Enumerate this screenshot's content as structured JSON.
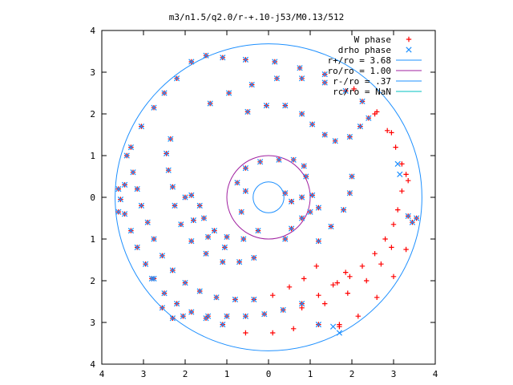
{
  "chart_data": {
    "type": "scatter",
    "title": "m3/n1.5/q2.0/r-+.10-j53/M0.13/512",
    "xlabel": "",
    "ylabel": "",
    "xlim": [
      -4,
      4
    ],
    "ylim": [
      -4,
      4
    ],
    "xtick_values": [
      -4,
      -3,
      -2,
      -1,
      0,
      1,
      2,
      3,
      4
    ],
    "xtick_labels": [
      "4",
      "3",
      "2",
      "1",
      "0",
      "1",
      "2",
      "3",
      "4"
    ],
    "ytick_values": [
      4,
      3,
      2,
      1,
      0,
      -1,
      -2,
      -3,
      -4
    ],
    "ytick_labels": [
      "4",
      "3",
      "2",
      "1",
      "0",
      "1",
      "2",
      "3",
      "4"
    ],
    "grid": false,
    "legend_position": "top-right",
    "legend": [
      {
        "label": "W phase",
        "kind": "marker",
        "marker": "+",
        "color": "#ff0000"
      },
      {
        "label": "drho phase",
        "kind": "marker",
        "marker": "x",
        "color": "#1e90ff"
      },
      {
        "label": "r+/ro = 3.68",
        "kind": "line",
        "color": "#1e90ff"
      },
      {
        "label": "ro/ro = 1.00",
        "kind": "line",
        "color": "#a020a0"
      },
      {
        "label": "r-/ro = .37",
        "kind": "line",
        "color": "#1e90ff"
      },
      {
        "label": "rc/ro = NaN",
        "kind": "line",
        "color": "#00c0c0"
      }
    ],
    "circles": [
      {
        "name": "r+",
        "radius": 3.68,
        "color": "#1e90ff"
      },
      {
        "name": "ro",
        "radius": 1.0,
        "color": "#a020a0"
      },
      {
        "name": "r-",
        "radius": 0.37,
        "color": "#1e90ff"
      }
    ],
    "series": [
      {
        "name": "W phase",
        "color": "#ff0000",
        "marker": "+",
        "points": [
          [
            -3.6,
            0.2
          ],
          [
            -3.55,
            -0.05
          ],
          [
            -3.45,
            -0.4
          ],
          [
            -3.3,
            -0.8
          ],
          [
            -3.15,
            -1.2
          ],
          [
            -2.95,
            -1.6
          ],
          [
            -2.75,
            -1.95
          ],
          [
            -2.5,
            -2.3
          ],
          [
            -2.2,
            -2.55
          ],
          [
            -1.85,
            -2.75
          ],
          [
            -1.45,
            -2.85
          ],
          [
            -1.0,
            -2.85
          ],
          [
            -0.55,
            -2.85
          ],
          [
            -0.1,
            -2.8
          ],
          [
            0.35,
            -2.7
          ],
          [
            0.8,
            -2.55
          ],
          [
            1.2,
            -2.35
          ],
          [
            1.55,
            -2.1
          ],
          [
            1.85,
            -1.8
          ],
          [
            -3.4,
            1.0
          ],
          [
            -3.25,
            0.6
          ],
          [
            -3.15,
            0.2
          ],
          [
            -3.05,
            -0.2
          ],
          [
            -2.9,
            -0.6
          ],
          [
            -2.75,
            -1.0
          ],
          [
            -2.55,
            -1.4
          ],
          [
            -2.3,
            -1.75
          ],
          [
            -2.0,
            -2.05
          ],
          [
            -1.65,
            -2.25
          ],
          [
            -1.25,
            -2.4
          ],
          [
            -0.8,
            -2.45
          ],
          [
            -0.35,
            -2.45
          ],
          [
            0.1,
            -2.35
          ],
          [
            0.5,
            -2.15
          ],
          [
            0.85,
            -1.95
          ],
          [
            1.15,
            -1.65
          ],
          [
            -2.35,
            1.4
          ],
          [
            -2.45,
            1.05
          ],
          [
            -2.4,
            0.65
          ],
          [
            -2.3,
            0.25
          ],
          [
            -2.25,
            -0.2
          ],
          [
            -2.1,
            -0.65
          ],
          [
            -1.85,
            -1.05
          ],
          [
            -1.5,
            -1.35
          ],
          [
            -1.1,
            -1.55
          ],
          [
            -0.7,
            -1.55
          ],
          [
            -0.35,
            -1.45
          ],
          [
            -1.85,
            0.05
          ],
          [
            -1.65,
            -0.2
          ],
          [
            -1.55,
            -0.5
          ],
          [
            -1.3,
            -0.8
          ],
          [
            -1.0,
            -0.95
          ],
          [
            -0.6,
            -1.0
          ],
          [
            -0.25,
            -0.8
          ],
          [
            -2.0,
            0.0
          ],
          [
            -1.8,
            -0.55
          ],
          [
            -1.45,
            -0.95
          ],
          [
            -1.05,
            -1.2
          ],
          [
            -1.4,
            2.25
          ],
          [
            -0.95,
            2.5
          ],
          [
            -0.4,
            2.7
          ],
          [
            0.2,
            2.85
          ],
          [
            0.8,
            2.85
          ],
          [
            1.35,
            2.75
          ],
          [
            1.85,
            2.55
          ],
          [
            2.25,
            2.3
          ],
          [
            2.55,
            2.0
          ],
          [
            2.85,
            1.6
          ],
          [
            3.05,
            1.2
          ],
          [
            3.2,
            0.8
          ],
          [
            3.35,
            0.4
          ],
          [
            -0.5,
            2.05
          ],
          [
            -0.05,
            2.2
          ],
          [
            0.4,
            2.2
          ],
          [
            0.8,
            2.0
          ],
          [
            1.05,
            1.75
          ],
          [
            1.35,
            1.5
          ],
          [
            1.6,
            1.35
          ],
          [
            1.95,
            1.45
          ],
          [
            2.2,
            1.7
          ],
          [
            2.4,
            1.9
          ],
          [
            -0.75,
            0.35
          ],
          [
            -0.55,
            0.7
          ],
          [
            -0.2,
            0.85
          ],
          [
            0.25,
            0.9
          ],
          [
            0.6,
            0.9
          ],
          [
            0.85,
            0.75
          ],
          [
            0.9,
            0.5
          ],
          [
            0.4,
            -1.0
          ],
          [
            0.55,
            -0.75
          ],
          [
            0.8,
            -0.5
          ],
          [
            1.0,
            -0.35
          ],
          [
            1.2,
            -0.25
          ],
          [
            0.4,
            0.1
          ],
          [
            0.55,
            -0.1
          ],
          [
            0.8,
            0.0
          ],
          [
            1.05,
            0.05
          ],
          [
            -0.65,
            -0.35
          ],
          [
            -0.55,
            0.15
          ],
          [
            0.55,
            -0.1
          ],
          [
            2.0,
            0.5
          ],
          [
            1.95,
            0.1
          ],
          [
            1.8,
            -0.3
          ],
          [
            1.5,
            -0.7
          ],
          [
            1.2,
            -1.05
          ],
          [
            1.65,
            -2.05
          ],
          [
            1.95,
            -1.9
          ],
          [
            2.25,
            -1.65
          ],
          [
            2.55,
            -1.35
          ],
          [
            2.8,
            -1.0
          ],
          [
            3.0,
            -0.65
          ],
          [
            3.1,
            -0.3
          ],
          [
            3.2,
            0.15
          ],
          [
            3.3,
            0.55
          ],
          [
            0.8,
            -2.65
          ],
          [
            1.35,
            -2.55
          ],
          [
            1.9,
            -2.3
          ],
          [
            2.35,
            -2.0
          ],
          [
            2.7,
            -1.6
          ],
          [
            2.95,
            -1.2
          ],
          [
            -1.5,
            -2.9
          ],
          [
            -1.1,
            -3.05
          ],
          [
            -0.55,
            -3.25
          ],
          [
            0.1,
            -3.25
          ],
          [
            0.6,
            -3.15
          ],
          [
            1.2,
            -3.05
          ],
          [
            1.7,
            -3.1
          ],
          [
            -2.8,
            -1.95
          ],
          [
            -2.55,
            -2.65
          ],
          [
            -2.3,
            -2.9
          ],
          [
            -2.05,
            -2.85
          ],
          [
            -3.45,
            0.3
          ],
          [
            -3.6,
            -0.35
          ],
          [
            -3.3,
            1.2
          ],
          [
            -3.05,
            1.7
          ],
          [
            -2.75,
            2.15
          ],
          [
            -2.5,
            2.5
          ],
          [
            -2.2,
            2.85
          ],
          [
            -1.85,
            3.25
          ],
          [
            -1.5,
            3.4
          ],
          [
            -1.1,
            3.35
          ],
          [
            -0.55,
            3.3
          ],
          [
            0.15,
            3.25
          ],
          [
            0.75,
            3.1
          ],
          [
            1.35,
            2.95
          ],
          [
            2.05,
            2.6
          ],
          [
            2.6,
            2.05
          ],
          [
            2.95,
            1.55
          ],
          [
            3.35,
            -0.45
          ],
          [
            3.45,
            -0.6
          ],
          [
            3.55,
            -0.5
          ],
          [
            3.3,
            -1.25
          ],
          [
            3.0,
            -1.9
          ],
          [
            2.6,
            -2.4
          ],
          [
            2.15,
            -2.85
          ],
          [
            1.7,
            -3.05
          ]
        ]
      },
      {
        "name": "drho phase",
        "color": "#1e90ff",
        "marker": "x",
        "points": [
          [
            -3.6,
            0.2
          ],
          [
            -3.55,
            -0.05
          ],
          [
            -3.45,
            -0.4
          ],
          [
            -3.3,
            -0.8
          ],
          [
            -3.15,
            -1.2
          ],
          [
            -2.95,
            -1.6
          ],
          [
            -2.75,
            -1.95
          ],
          [
            -2.5,
            -2.3
          ],
          [
            -2.2,
            -2.55
          ],
          [
            -1.85,
            -2.75
          ],
          [
            -1.45,
            -2.85
          ],
          [
            -1.0,
            -2.85
          ],
          [
            -0.55,
            -2.85
          ],
          [
            -0.1,
            -2.8
          ],
          [
            0.35,
            -2.7
          ],
          [
            0.8,
            -2.55
          ],
          [
            -3.4,
            1.0
          ],
          [
            -3.25,
            0.6
          ],
          [
            -3.15,
            0.2
          ],
          [
            -3.05,
            -0.2
          ],
          [
            -2.9,
            -0.6
          ],
          [
            -2.75,
            -1.0
          ],
          [
            -2.55,
            -1.4
          ],
          [
            -2.3,
            -1.75
          ],
          [
            -2.0,
            -2.05
          ],
          [
            -1.65,
            -2.25
          ],
          [
            -1.25,
            -2.4
          ],
          [
            -0.8,
            -2.45
          ],
          [
            -0.35,
            -2.45
          ],
          [
            -2.35,
            1.4
          ],
          [
            -2.45,
            1.05
          ],
          [
            -2.4,
            0.65
          ],
          [
            -2.3,
            0.25
          ],
          [
            -2.25,
            -0.2
          ],
          [
            -2.1,
            -0.65
          ],
          [
            -1.85,
            -1.05
          ],
          [
            -1.5,
            -1.35
          ],
          [
            -1.1,
            -1.55
          ],
          [
            -0.7,
            -1.55
          ],
          [
            -0.35,
            -1.45
          ],
          [
            -1.85,
            0.05
          ],
          [
            -1.65,
            -0.2
          ],
          [
            -1.55,
            -0.5
          ],
          [
            -1.3,
            -0.8
          ],
          [
            -1.0,
            -0.95
          ],
          [
            -0.6,
            -1.0
          ],
          [
            -0.25,
            -0.8
          ],
          [
            -2.0,
            0.0
          ],
          [
            -1.8,
            -0.55
          ],
          [
            -1.45,
            -0.95
          ],
          [
            -1.05,
            -1.2
          ],
          [
            -1.4,
            2.25
          ],
          [
            -0.95,
            2.5
          ],
          [
            -0.4,
            2.7
          ],
          [
            0.2,
            2.85
          ],
          [
            0.8,
            2.85
          ],
          [
            1.35,
            2.75
          ],
          [
            1.85,
            2.55
          ],
          [
            2.25,
            2.3
          ],
          [
            -0.5,
            2.05
          ],
          [
            -0.05,
            2.2
          ],
          [
            0.4,
            2.2
          ],
          [
            0.8,
            2.0
          ],
          [
            1.05,
            1.75
          ],
          [
            1.35,
            1.5
          ],
          [
            1.6,
            1.35
          ],
          [
            1.95,
            1.45
          ],
          [
            2.2,
            1.7
          ],
          [
            2.4,
            1.9
          ],
          [
            -0.75,
            0.35
          ],
          [
            -0.55,
            0.7
          ],
          [
            -0.2,
            0.85
          ],
          [
            0.25,
            0.9
          ],
          [
            0.6,
            0.9
          ],
          [
            0.85,
            0.75
          ],
          [
            0.9,
            0.5
          ],
          [
            0.4,
            -1.0
          ],
          [
            0.55,
            -0.75
          ],
          [
            0.8,
            -0.5
          ],
          [
            1.0,
            -0.35
          ],
          [
            1.2,
            -0.25
          ],
          [
            0.4,
            0.1
          ],
          [
            0.55,
            -0.1
          ],
          [
            0.8,
            0.0
          ],
          [
            1.05,
            0.05
          ],
          [
            -0.65,
            -0.35
          ],
          [
            -0.55,
            0.15
          ],
          [
            2.0,
            0.5
          ],
          [
            1.95,
            0.1
          ],
          [
            1.8,
            -0.3
          ],
          [
            1.5,
            -0.7
          ],
          [
            1.2,
            -1.05
          ],
          [
            3.1,
            0.8
          ],
          [
            3.15,
            0.55
          ],
          [
            3.35,
            -0.45
          ],
          [
            3.45,
            -0.6
          ],
          [
            3.55,
            -0.5
          ],
          [
            -1.5,
            -2.9
          ],
          [
            -1.1,
            -3.05
          ],
          [
            1.2,
            -3.05
          ],
          [
            1.55,
            -3.1
          ],
          [
            1.7,
            -3.25
          ],
          [
            -2.8,
            -1.95
          ],
          [
            -2.55,
            -2.65
          ],
          [
            -2.3,
            -2.9
          ],
          [
            -2.05,
            -2.85
          ],
          [
            -3.45,
            0.3
          ],
          [
            -3.6,
            -0.35
          ],
          [
            -3.3,
            1.2
          ],
          [
            -3.05,
            1.7
          ],
          [
            -2.75,
            2.15
          ],
          [
            -2.5,
            2.5
          ],
          [
            -2.2,
            2.85
          ],
          [
            -1.85,
            3.25
          ],
          [
            -1.5,
            3.4
          ],
          [
            -1.1,
            3.35
          ],
          [
            -0.55,
            3.3
          ],
          [
            0.15,
            3.25
          ],
          [
            0.75,
            3.1
          ],
          [
            1.35,
            2.95
          ]
        ]
      }
    ]
  }
}
